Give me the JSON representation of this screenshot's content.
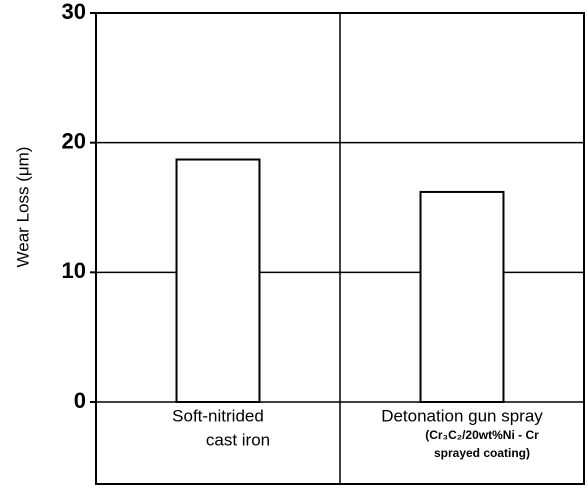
{
  "chart_data": {
    "type": "bar",
    "ylabel": "Wear Loss (μm)",
    "categories": [
      [
        "Soft-nitrided",
        "cast iron"
      ],
      [
        "Detonation gun spray",
        "(Cr₃C₂/20wt%Ni - Cr",
        "sprayed coating)"
      ]
    ],
    "values": [
      18.7,
      16.2
    ],
    "color": "#ffffff",
    "ylim": [
      0,
      30
    ],
    "yticks": [
      0,
      10,
      20,
      30
    ],
    "grid": true
  }
}
